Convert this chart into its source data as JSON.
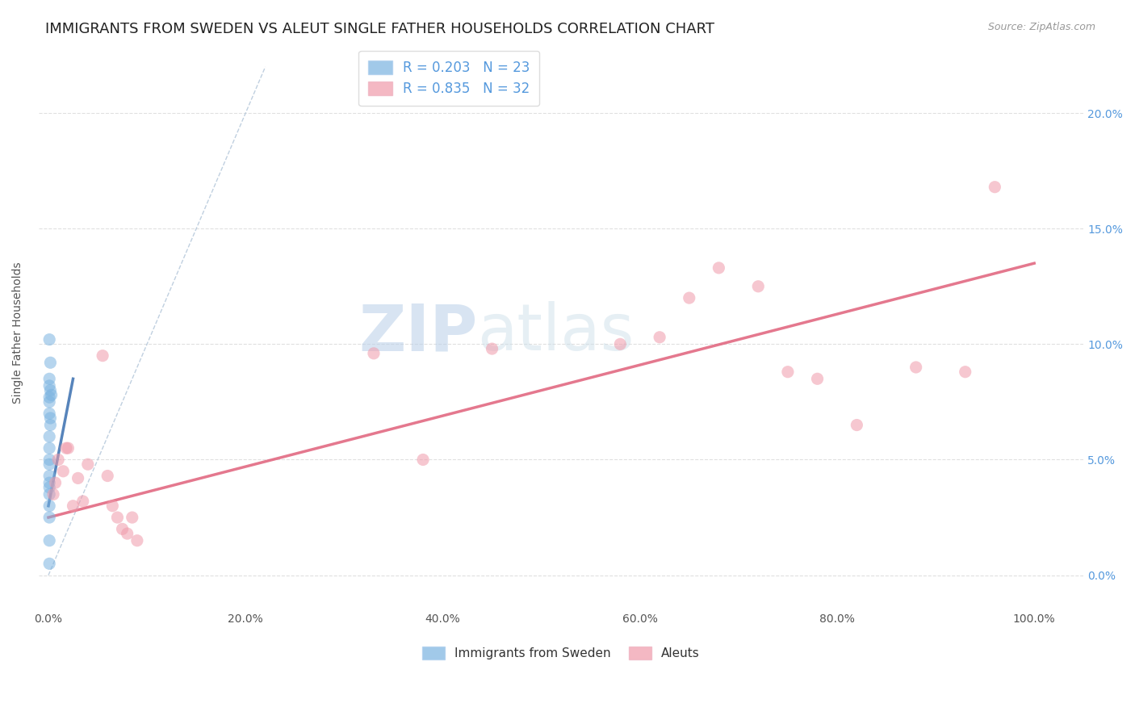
{
  "title": "IMMIGRANTS FROM SWEDEN VS ALEUT SINGLE FATHER HOUSEHOLDS CORRELATION CHART",
  "source": "Source: ZipAtlas.com",
  "ylabel": "Single Father Households",
  "blue_r": "0.203",
  "blue_n": "23",
  "pink_r": "0.835",
  "pink_n": "32",
  "blue_points_x": [
    0.001,
    0.002,
    0.001,
    0.001,
    0.002,
    0.003,
    0.001,
    0.001,
    0.001,
    0.002,
    0.002,
    0.001,
    0.001,
    0.001,
    0.001,
    0.001,
    0.001,
    0.001,
    0.001,
    0.001,
    0.001,
    0.001,
    0.001
  ],
  "blue_points_y": [
    0.102,
    0.092,
    0.085,
    0.082,
    0.08,
    0.078,
    0.077,
    0.075,
    0.07,
    0.068,
    0.065,
    0.06,
    0.055,
    0.05,
    0.048,
    0.043,
    0.04,
    0.038,
    0.035,
    0.03,
    0.025,
    0.015,
    0.005
  ],
  "pink_points_x": [
    0.005,
    0.007,
    0.01,
    0.015,
    0.018,
    0.02,
    0.025,
    0.03,
    0.035,
    0.04,
    0.055,
    0.06,
    0.065,
    0.07,
    0.075,
    0.08,
    0.085,
    0.09,
    0.33,
    0.38,
    0.45,
    0.58,
    0.62,
    0.65,
    0.68,
    0.72,
    0.75,
    0.78,
    0.82,
    0.88,
    0.93,
    0.96
  ],
  "pink_points_y": [
    0.035,
    0.04,
    0.05,
    0.045,
    0.055,
    0.055,
    0.03,
    0.042,
    0.032,
    0.048,
    0.095,
    0.043,
    0.03,
    0.025,
    0.02,
    0.018,
    0.025,
    0.015,
    0.096,
    0.05,
    0.098,
    0.1,
    0.103,
    0.12,
    0.133,
    0.125,
    0.088,
    0.085,
    0.065,
    0.09,
    0.088,
    0.168
  ],
  "blue_line_x": [
    0.0,
    0.025
  ],
  "blue_line_y": [
    0.03,
    0.085
  ],
  "pink_line_x": [
    0.0,
    1.0
  ],
  "pink_line_y": [
    0.025,
    0.135
  ],
  "diag_line_x": [
    0.0,
    0.22
  ],
  "diag_line_y": [
    0.0,
    0.22
  ],
  "xlim": [
    -0.01,
    1.05
  ],
  "ylim": [
    -0.015,
    0.225
  ],
  "xticks": [
    0.0,
    0.2,
    0.4,
    0.6,
    0.8,
    1.0
  ],
  "xtick_labels": [
    "0.0%",
    "20.0%",
    "40.0%",
    "60.0%",
    "80.0%",
    "100.0%"
  ],
  "yticks": [
    0.0,
    0.05,
    0.1,
    0.15,
    0.2
  ],
  "ytick_labels_right": [
    "0.0%",
    "5.0%",
    "10.0%",
    "15.0%",
    "20.0%"
  ],
  "bg_color": "#ffffff",
  "grid_color": "#dddddd",
  "blue_color": "#7ab3e0",
  "pink_color": "#f09aaa",
  "blue_line_color": "#3a6faf",
  "pink_line_color": "#e0607a",
  "diag_color": "#b0c4d8",
  "marker_size": 120,
  "watermark_zip": "ZIP",
  "watermark_atlas": "atlas",
  "title_fontsize": 13,
  "label_fontsize": 10
}
